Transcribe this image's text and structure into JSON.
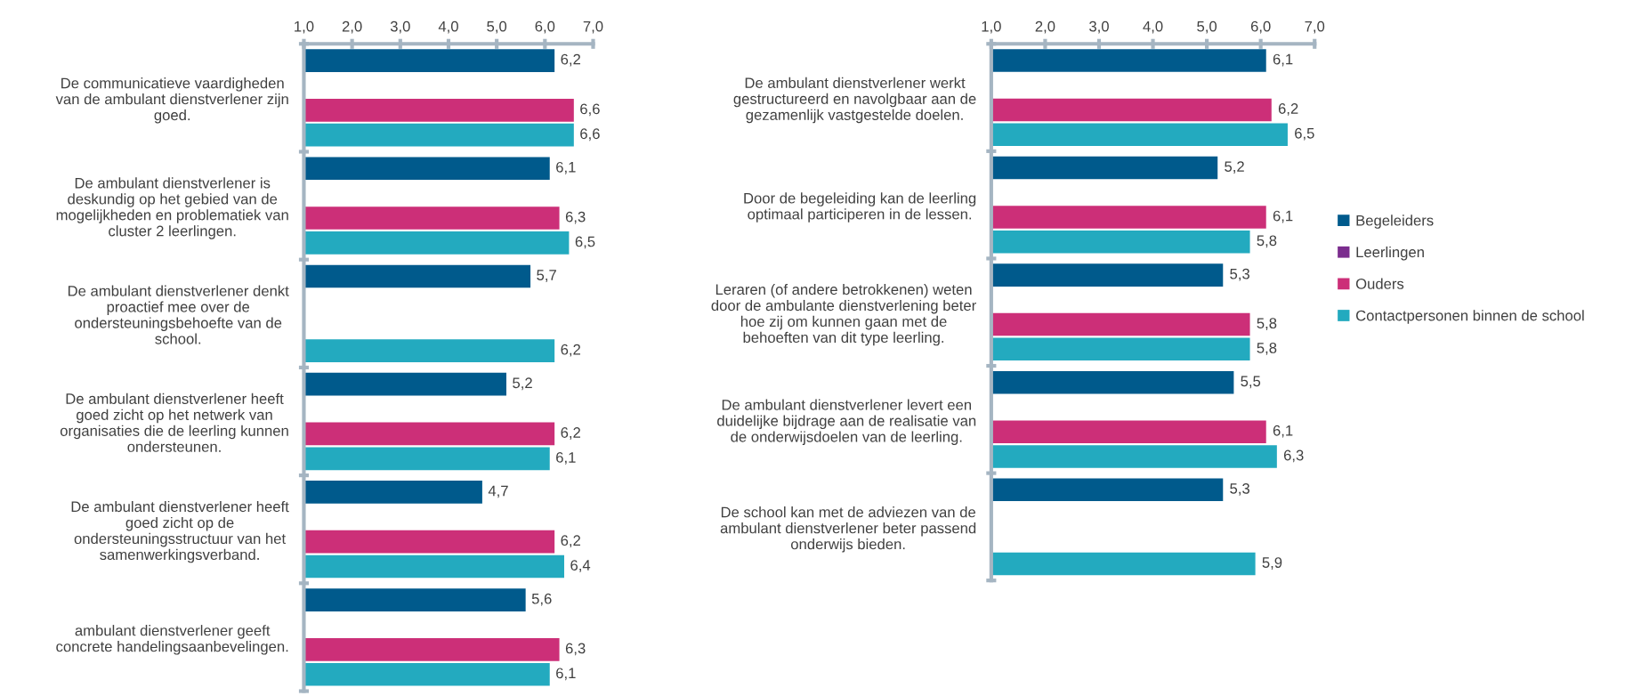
{
  "chart_data": [
    {
      "type": "bar",
      "orientation": "horizontal",
      "categories": [
        "De communicatieve vaardigheden\nvan de ambulant dienstverlener zijn\ngoed.",
        "De ambulant dienstverlener is\ndeskundig op het gebied van de\nmogelijkheden en problematiek van\ncluster 2 leerlingen.",
        "De ambulant dienstverlener denkt\nproactief mee over de\nondersteuningsbehoefte van de\nschool.",
        "De ambulant dienstverlener heeft\ngoed zicht op het netwerk van\norganisaties die de leerling kunnen\nondersteunen.",
        "De ambulant dienstverlener heeft\ngoed zicht op de\nondersteuningsstructuur van het\nsamenwerkingsverband.",
        "ambulant dienstverlener geeft\nconcrete handelingsaanbevelingen."
      ],
      "series": [
        {
          "color": "#005a8c",
          "values": [
            6.2,
            6.1,
            5.7,
            5.2,
            4.7,
            5.6
          ],
          "value_labels": [
            "6,2",
            "6,1",
            "5,7",
            "5,2",
            "4,7",
            "5,6"
          ]
        },
        {
          "values": [
            null,
            null,
            null,
            null,
            null,
            null
          ],
          "value_labels": [
            null,
            null,
            null,
            null,
            null,
            null
          ]
        },
        {
          "color": "#cc2f78",
          "values": [
            6.6,
            6.3,
            null,
            6.2,
            6.2,
            6.3
          ],
          "value_labels": [
            "6,6",
            "6,3",
            null,
            "6,2",
            "6,2",
            "6,3"
          ]
        },
        {
          "color": "#23aabf",
          "values": [
            6.6,
            6.5,
            6.2,
            6.1,
            6.4,
            6.1
          ],
          "value_labels": [
            "6,6",
            "6,5",
            "6,2",
            "6,1",
            "6,4",
            "6,1"
          ]
        }
      ],
      "xlim": [
        1,
        7
      ],
      "xticks": [
        {
          "value": 1,
          "label": "1,0"
        },
        {
          "value": 2,
          "label": "2,0"
        },
        {
          "value": 3,
          "label": "3,0"
        },
        {
          "value": 4,
          "label": "4,0"
        },
        {
          "value": 5,
          "label": "5,0"
        },
        {
          "value": 6,
          "label": "6,0"
        },
        {
          "value": 7,
          "label": "7,0"
        }
      ],
      "grid": false
    },
    {
      "type": "bar",
      "orientation": "horizontal",
      "categories": [
        "De ambulant dienstverlener werkt\ngestructureerd en navolgbaar aan de\ngezamenlijk vastgestelde doelen.",
        "Door de begeleiding kan de leerling\noptimaal participeren in de lessen.",
        "Leraren (of andere betrokkenen) weten\ndoor de ambulante dienstverlening beter\nhoe zij om kunnen gaan met de\nbehoeften van dit type leerling.",
        "De ambulant dienstverlener levert een\nduidelijke bijdrage aan de realisatie van\nde onderwijsdoelen van de leerling.",
        "De school kan met de adviezen van de\nambulant dienstverlener beter passend\nonderwijs bieden."
      ],
      "series": [
        {
          "name": "Begeleiders",
          "color": "#005a8c",
          "values": [
            6.1,
            5.2,
            5.3,
            5.5,
            5.3
          ],
          "value_labels": [
            "6,1",
            "5,2",
            "5,3",
            "5,5",
            "5,3"
          ]
        },
        {
          "name": "Leerlingen",
          "color": "#7b2d8e",
          "values": [
            null,
            null,
            null,
            null,
            null
          ],
          "value_labels": [
            null,
            null,
            null,
            null,
            null
          ]
        },
        {
          "name": "Ouders",
          "color": "#cc2f78",
          "values": [
            6.2,
            6.1,
            5.8,
            6.1,
            null
          ],
          "value_labels": [
            "6,2",
            "6,1",
            "5,8",
            "6,1",
            null
          ]
        },
        {
          "name": "Contactpersonen binnen de school",
          "color": "#23aabf",
          "values": [
            6.5,
            5.8,
            5.8,
            6.3,
            5.9
          ],
          "value_labels": [
            "6,5",
            "5,8",
            "5,8",
            "6,3",
            "5,9"
          ]
        }
      ],
      "xlim": [
        1,
        7
      ],
      "xticks": [
        {
          "value": 1,
          "label": "1,0"
        },
        {
          "value": 2,
          "label": "2,0"
        },
        {
          "value": 3,
          "label": "3,0"
        },
        {
          "value": 4,
          "label": "4,0"
        },
        {
          "value": 5,
          "label": "5,0"
        },
        {
          "value": 6,
          "label": "6,0"
        },
        {
          "value": 7,
          "label": "7,0"
        }
      ],
      "grid": false,
      "legend": "right"
    }
  ]
}
